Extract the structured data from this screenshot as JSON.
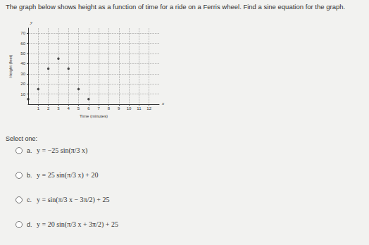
{
  "question": "The graph below shows height as a function of time for a ride on a Ferris wheel. Find a sine equation for the graph.",
  "chart_data": {
    "type": "scatter",
    "xlabel": "Time (minutes)",
    "ylabel": "Height (feet)",
    "x_axis_symbol": "x",
    "y_axis_symbol": "y",
    "x": [
      0,
      1,
      2,
      3,
      4,
      5,
      6
    ],
    "values": [
      5,
      15,
      35,
      45,
      35,
      15,
      5
    ],
    "color": "#222222",
    "marker": "circle",
    "xlim": [
      0,
      13
    ],
    "xticks": [
      1,
      2,
      3,
      4,
      5,
      6,
      7,
      8,
      9,
      10,
      11,
      12
    ],
    "ylim": [
      0,
      75
    ],
    "yticks": [
      10,
      20,
      30,
      40,
      50,
      60,
      70
    ],
    "grid": true
  },
  "prompt": "Select one:",
  "options": [
    {
      "letter": "a.",
      "equation": "y = −25 sin(π/3 x)"
    },
    {
      "letter": "b.",
      "equation": "y = 25 sin(π/3 x) + 20"
    },
    {
      "letter": "c.",
      "equation": "y = sin(π/3 x − 3π/2) + 25"
    },
    {
      "letter": "d.",
      "equation": "y = 20 sin(π/3 x + 3π/2) + 25"
    }
  ]
}
